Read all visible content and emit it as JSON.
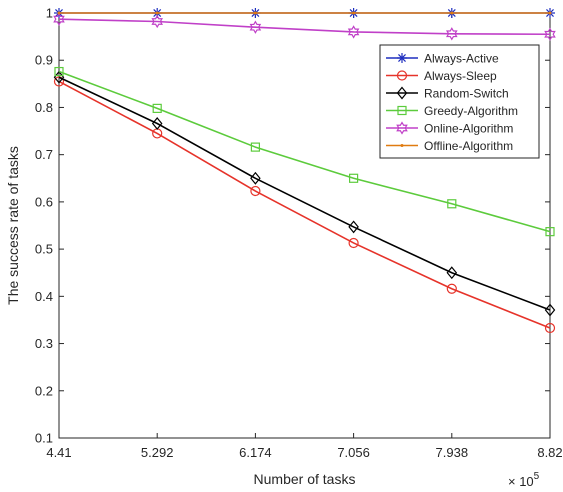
{
  "chart_data": {
    "type": "line",
    "title": "",
    "xlabel": "Number of tasks",
    "ylabel": "The success rate of tasks",
    "x_multiplier_label": "× 10",
    "x_multiplier_exp": "5",
    "x": [
      4.41,
      5.292,
      6.174,
      7.056,
      7.938,
      8.82
    ],
    "x_tick_labels": [
      "4.41",
      "5.292",
      "6.174",
      "7.056",
      "7.938",
      "8.82"
    ],
    "xlim": [
      4.41,
      8.82
    ],
    "ylim": [
      0.1,
      1.0
    ],
    "y_ticks": [
      0.1,
      0.2,
      0.3,
      0.4,
      0.5,
      0.6,
      0.7,
      0.8,
      0.9,
      1.0
    ],
    "y_tick_labels": [
      "0.1",
      "0.2",
      "0.3",
      "0.4",
      "0.5",
      "0.6",
      "0.7",
      "0.8",
      "0.9",
      "1"
    ],
    "grid": false,
    "legend_position": "top-right",
    "series": [
      {
        "name": "Always-Active",
        "color": "#1f2fbf",
        "marker": "asterisk",
        "values": [
          1.0,
          1.0,
          1.0,
          1.0,
          1.0,
          1.0
        ]
      },
      {
        "name": "Always-Sleep",
        "color": "#e6332a",
        "marker": "circle",
        "values": [
          0.855,
          0.745,
          0.623,
          0.513,
          0.416,
          0.333
        ]
      },
      {
        "name": "Random-Switch",
        "color": "#000000",
        "marker": "diamond",
        "values": [
          0.864,
          0.766,
          0.65,
          0.547,
          0.45,
          0.371
        ]
      },
      {
        "name": "Greedy-Algorithm",
        "color": "#5ccb3c",
        "marker": "square",
        "values": [
          0.876,
          0.798,
          0.716,
          0.65,
          0.596,
          0.537
        ]
      },
      {
        "name": "Online-Algorithm",
        "color": "#c040c8",
        "marker": "hexagram",
        "values": [
          0.987,
          0.982,
          0.97,
          0.96,
          0.956,
          0.955
        ]
      },
      {
        "name": "Offline-Algorithm",
        "color": "#e07b10",
        "marker": "dot",
        "values": [
          1.0,
          1.0,
          1.0,
          1.0,
          1.0,
          1.0
        ]
      }
    ]
  }
}
